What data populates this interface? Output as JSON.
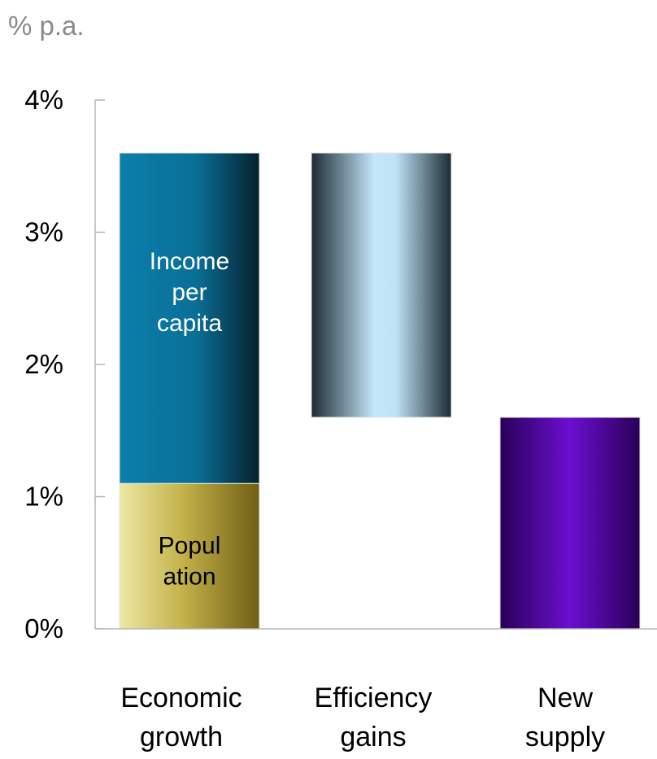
{
  "chart_data": {
    "type": "bar",
    "subtype": "waterfall",
    "unit_label": "% p.a.",
    "ylim": [
      0,
      4
    ],
    "y_ticks": [
      "0%",
      "1%",
      "2%",
      "3%",
      "4%"
    ],
    "y_tick_values": [
      0,
      1,
      2,
      3,
      4
    ],
    "categories": [
      [
        "Economic",
        "growth"
      ],
      [
        "Efficiency",
        "gains"
      ],
      [
        "New",
        "supply"
      ]
    ],
    "bars": [
      {
        "category_index": 0,
        "segments": [
          {
            "label": [
              "Popul",
              "ation"
            ],
            "start": 0,
            "end": 1.1,
            "color": "#c9b84a",
            "text_color": "#000000"
          },
          {
            "label": [
              "Income",
              "per",
              "capita"
            ],
            "start": 1.1,
            "end": 3.6,
            "color": "#0e7fa8",
            "text_color": "#ffffff"
          }
        ]
      },
      {
        "category_index": 1,
        "segments": [
          {
            "label": [],
            "start": 1.6,
            "end": 3.6,
            "color": "#bfe4f8",
            "text_color": "#000000"
          }
        ]
      },
      {
        "category_index": 2,
        "segments": [
          {
            "label": [],
            "start": 0,
            "end": 1.6,
            "color": "#6a0dcc",
            "text_color": "#ffffff"
          }
        ]
      }
    ],
    "grid": false,
    "legend": "none"
  }
}
